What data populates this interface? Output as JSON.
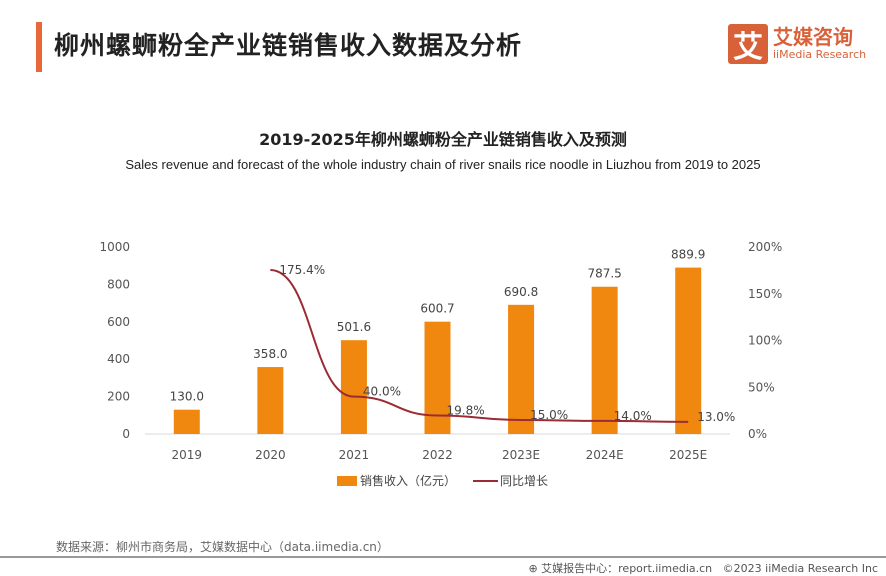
{
  "header": {
    "title": "柳州螺蛳粉全产业链销售收入数据及分析",
    "logo_mark": "艾",
    "logo_cn": "艾媒咨询",
    "logo_en": "iiMedia Research"
  },
  "chart_data": {
    "type": "bar+line",
    "title": "2019-2025年柳州螺蛳粉全产业链销售收入及预测",
    "subtitle": "Sales revenue and forecast of the whole industry chain of river snails rice noodle in Liuzhou  from 2019 to 2025",
    "categories": [
      "2019",
      "2020",
      "2021",
      "2022",
      "2023E",
      "2024E",
      "2025E"
    ],
    "series": [
      {
        "name": "销售收入（亿元）",
        "type": "bar",
        "axis": "left",
        "color": "#f0870f",
        "values": [
          130.0,
          358.0,
          501.6,
          600.7,
          690.8,
          787.5,
          889.9
        ],
        "labels": [
          "130.0",
          "358.0",
          "501.6",
          "600.7",
          "690.8",
          "787.5",
          "889.9"
        ]
      },
      {
        "name": "同比增长",
        "type": "line",
        "axis": "right",
        "color": "#9b2b35",
        "values": [
          null,
          175.4,
          40.0,
          19.8,
          15.0,
          14.0,
          13.0
        ],
        "labels": [
          "",
          "175.4%",
          "40.0%",
          "19.8%",
          "15.0%",
          "14.0%",
          "13.0%"
        ]
      }
    ],
    "left_axis": {
      "ylim": [
        0,
        1000
      ],
      "ticks": [
        "0",
        "200",
        "400",
        "600",
        "800",
        "1000"
      ]
    },
    "right_axis": {
      "ylim": [
        0,
        200
      ],
      "ticks": [
        "0%",
        "50%",
        "100%",
        "150%",
        "200%"
      ]
    },
    "legend": "bottom",
    "grid": false
  },
  "footer": {
    "source": "数据来源：柳州市商务局，艾媒数据中心（data.iimedia.cn）",
    "report": "艾媒报告中心：report.iimedia.cn",
    "copyright": "©2023  iiMedia Research  Inc"
  }
}
